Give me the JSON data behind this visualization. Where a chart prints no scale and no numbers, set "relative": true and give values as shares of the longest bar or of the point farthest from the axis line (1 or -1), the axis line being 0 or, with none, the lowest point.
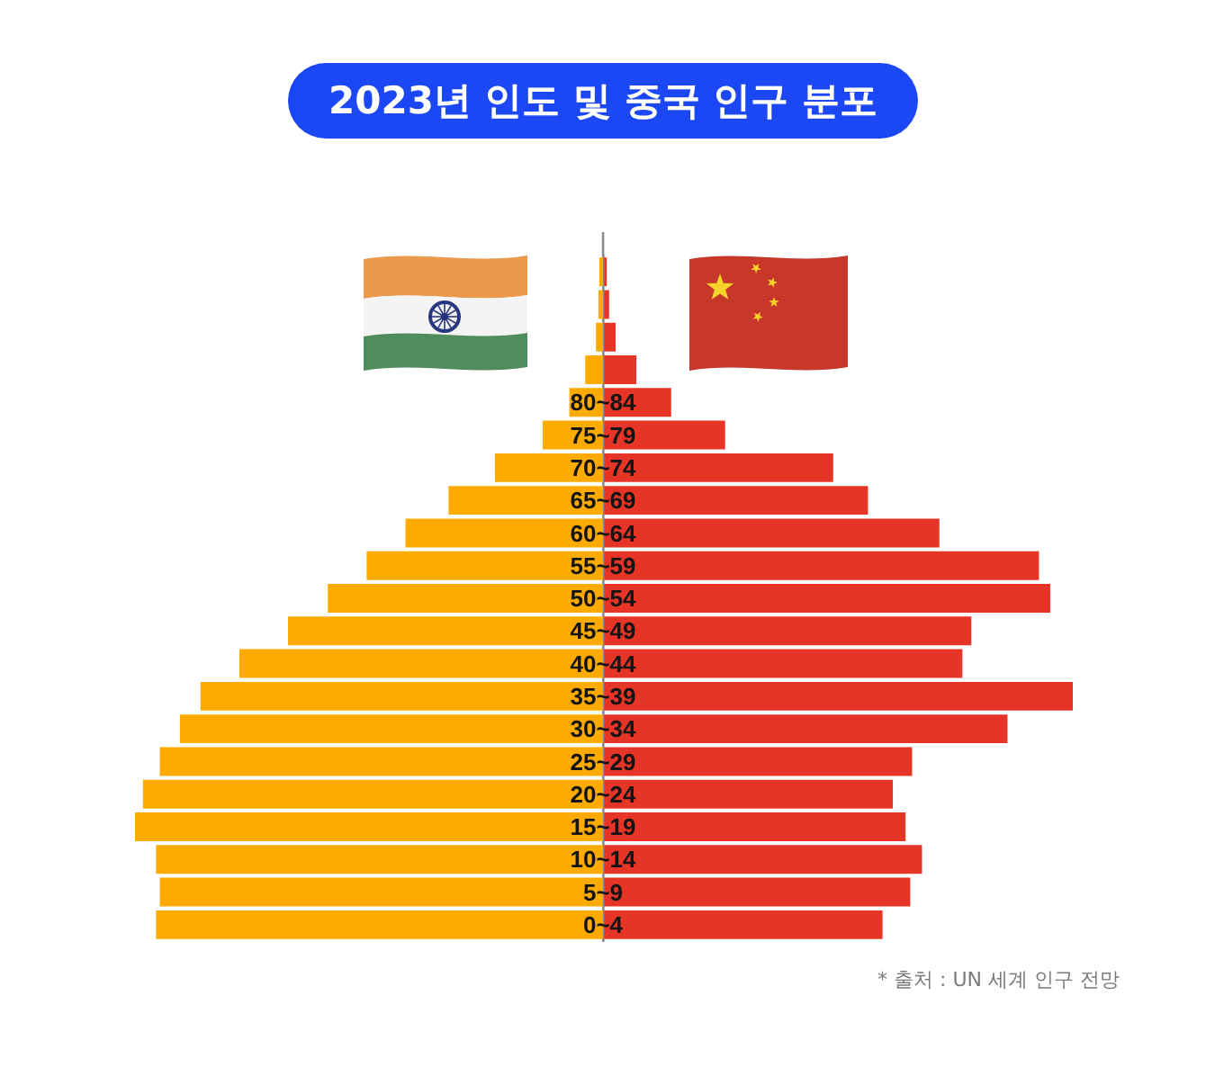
{
  "chart_data": [
    {
      "type": "bar",
      "orientation": "horizontal",
      "relative": true,
      "tick_labels": "y",
      "title": "2023년 인도 및 중국 인구 분포",
      "categories": [
        null,
        null,
        null,
        null,
        "80~84",
        "75~79",
        "70~74",
        "65~69",
        "60~64",
        "55~59",
        "50~54",
        "45~49",
        "40~44",
        "35~39",
        "30~34",
        "25~29",
        "20~24",
        "15~19",
        "10~14",
        "5~9",
        "0~4"
      ],
      "series": [
        {
          "color": "#fdab00",
          "values": [
            -0.008,
            -0.01,
            -0.015,
            -0.038,
            -0.072,
            -0.129,
            -0.231,
            -0.33,
            -0.422,
            -0.505,
            -0.588,
            -0.673,
            -0.777,
            -0.86,
            -0.904,
            -0.947,
            -0.983,
            -1,
            -0.955,
            -0.947,
            -0.955
          ]
        }
      ]
    },
    {
      "type": "bar",
      "orientation": "horizontal",
      "relative": true,
      "tick_labels": false,
      "annotations": [
        "* 출처 : UN 세계 인구 전망"
      ],
      "categories": [
        null,
        null,
        null,
        null,
        null,
        null,
        null,
        null,
        null,
        null,
        null,
        null,
        null,
        null,
        null,
        null,
        null,
        null,
        null,
        null,
        null
      ],
      "series": [
        {
          "color": "#e63427",
          "values": [
            0.008,
            0.013,
            0.027,
            0.071,
            0.145,
            0.26,
            0.49,
            0.564,
            0.716,
            0.928,
            0.952,
            0.784,
            0.765,
            1,
            0.861,
            0.658,
            0.617,
            0.644,
            0.679,
            0.654,
            0.595
          ]
        }
      ]
    }
  ]
}
